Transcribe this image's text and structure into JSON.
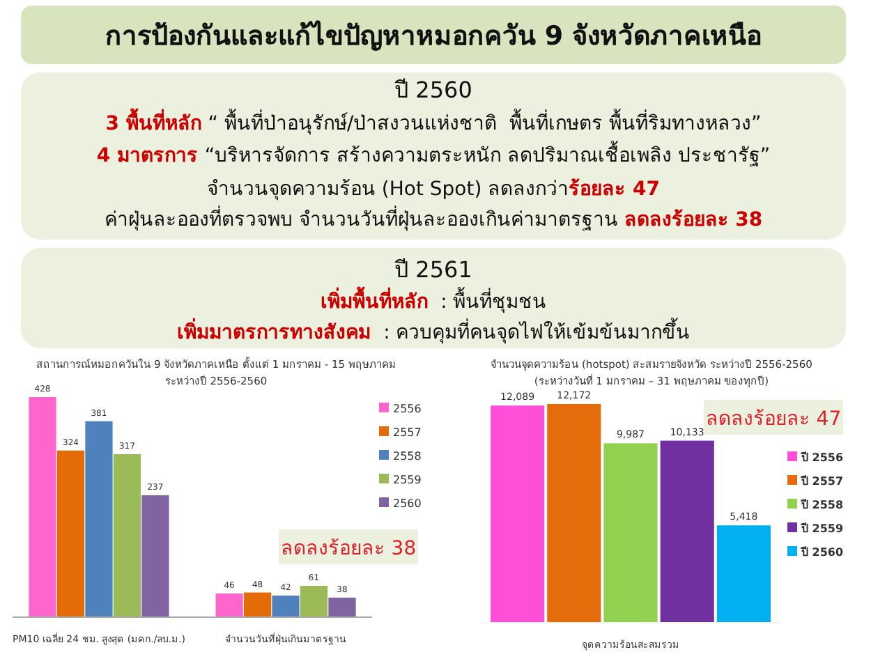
{
  "chart_data": [
    {
      "type": "other",
      "title": "การป้องกันและแก้ไขปัญหาหมอกควัน 9 จังหวัดภาคเหนือ",
      "annotations": [
        "ปี 2560",
        "3 พื้นที่หลัก",
        "“ พื้นที่ป่าอนุรักษ์/ป่าสงวนแห่งชาติ  พื้นที่เกษตร พื้นที่ริมทางหลวง”",
        "4 มาตรการ",
        "“บริหารจัดการ สร้างความตระหนัก ลดปริมาณเชื้อเพลิง ประชารัฐ”",
        "จำนวนจุดความร้อน (Hot Spot) ลดลงกว่า",
        "ร้อยละ 47",
        "ค่าฝุ่นละอองที่ตรวจพบ จำนวนวันที่ฝุ่นละอองเกินค่ามาตรฐาน",
        "ลดลงร้อยละ 38",
        "ปี 2561",
        "เพิ่มพื้นที่หลัก",
        " : พื้นที่ชุมชน",
        "เพิ่มมาตรการทางสังคม",
        " : ควบคุมที่คนจุดไฟให้เข้มข้นมากขึ้น"
      ]
    },
    {
      "type": "bar",
      "title": "สถานการณ์หมอกควันใน 9 จังหวัดภาคเหนือ ตั้งแต่ 1 มกราคม - 15 พฤษภาคม",
      "subtitle": "ระหว่างปี 2556-2560",
      "categories": [
        "PM10 เฉลี่ย 24 ชม. สูงสุด (มคก./ลบ.ม.)",
        "จำนวนวันที่ฝุ่นเกินมาตรฐาน"
      ],
      "series": [
        {
          "name": "2556",
          "color": "#ff66cc",
          "values": [
            428,
            46
          ]
        },
        {
          "name": "2557",
          "color": "#e36c09",
          "values": [
            324,
            48
          ]
        },
        {
          "name": "2558",
          "color": "#4f81bd",
          "values": [
            381,
            42
          ]
        },
        {
          "name": "2559",
          "color": "#9bbb59",
          "values": [
            317,
            61
          ]
        },
        {
          "name": "2560",
          "color": "#8064a2",
          "values": [
            237,
            38
          ]
        }
      ],
      "data_labels": true,
      "legend": "right",
      "annotations": [
        "ลดลงร้อยละ 38"
      ]
    },
    {
      "type": "bar",
      "title": "จำนวนจุดความร้อน (hotspot) สะสมรายจังหวัด ระหว่างปี 2556-2560",
      "subtitle": "(ระหว่างวันที่ 1 มกราคม – 31 พฤษภาคม ของทุกปี)",
      "xlabel": "จุดความร้อนสะสมรวม",
      "categories": [
        null,
        null,
        null,
        null,
        null
      ],
      "stacked": true,
      "series": [
        {
          "name": "ปี 2556",
          "color": "#ff4fd8",
          "values": [
            12089,
            null,
            null,
            null,
            null
          ],
          "value_labels": [
            "12,089",
            null,
            null,
            null,
            null
          ]
        },
        {
          "name": "ปี 2557",
          "color": "#e46c0a",
          "values": [
            null,
            12172,
            null,
            null,
            null
          ],
          "value_labels": [
            null,
            "12,172",
            null,
            null,
            null
          ]
        },
        {
          "name": "ปี 2558",
          "color": "#92d050",
          "values": [
            null,
            null,
            9987,
            null,
            null
          ],
          "value_labels": [
            null,
            null,
            "9,987",
            null,
            null
          ]
        },
        {
          "name": "ปี 2559",
          "color": "#7030a0",
          "values": [
            null,
            null,
            null,
            10133,
            null
          ],
          "value_labels": [
            null,
            null,
            null,
            "10,133",
            null
          ]
        },
        {
          "name": "ปี 2560",
          "color": "#00b0f0",
          "values": [
            null,
            null,
            null,
            null,
            5418
          ],
          "value_labels": [
            null,
            null,
            null,
            null,
            "5,418"
          ]
        }
      ],
      "legend": "right",
      "annotations": [
        "ลดลงร้อยละ 47"
      ]
    }
  ]
}
